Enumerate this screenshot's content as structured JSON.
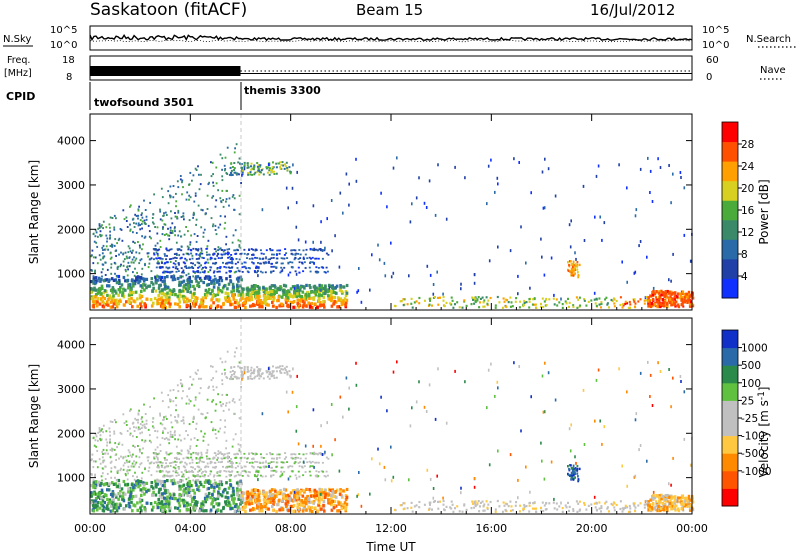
{
  "header": {
    "station": "Saskatoon (fitACF)",
    "beam": "Beam 15",
    "date": "16/Jul/2012"
  },
  "noise_panel": {
    "left_label": "N.Sky",
    "right_label": "N.Search",
    "left_ticks": [
      "10^5",
      "10^0"
    ],
    "right_ticks": [
      "10^5",
      "10^0"
    ]
  },
  "freq_panel": {
    "left_label_line1": "Freq.",
    "left_label_line2": "[MHz]",
    "right_label": "Nave",
    "left_ticks": [
      "18",
      "8"
    ],
    "right_ticks": [
      "60",
      "0"
    ]
  },
  "cpid_panel": {
    "label": "CPID",
    "segments": [
      {
        "name": "twofsound 3501",
        "start_hour": 0,
        "end_hour": 6
      },
      {
        "name": "themis 3300",
        "start_hour": 6,
        "end_hour": 24
      }
    ]
  },
  "colors": {
    "power_scale": [
      "#1030ff",
      "#2040a8",
      "#2a6aa8",
      "#3a8a6a",
      "#4aaa3a",
      "#d8d020",
      "#ffa000",
      "#ff5000",
      "#ff0000"
    ],
    "velocity_scale": [
      "#ff0000",
      "#ff5500",
      "#ff8a00",
      "#ffc840",
      "#c0c0c0",
      "#c0c0c0",
      "#60c040",
      "#2a8a4a",
      "#2a6aa8",
      "#1030c8"
    ]
  },
  "chart_data": [
    {
      "type": "heatmap",
      "panel": "power",
      "ylabel": "Slant Range [km]",
      "ytick_labels": [
        "1000",
        "2000",
        "3000",
        "4000"
      ],
      "yticks": [
        1000,
        2000,
        3000,
        4000
      ],
      "ylim": [
        180,
        4600
      ],
      "xlim": [
        0,
        24
      ],
      "colorbar_label": "Power [dB]",
      "colorbar_ticks": [
        "4",
        "8",
        "12",
        "16",
        "20",
        "24",
        "28"
      ],
      "colorbar_range": [
        0,
        30
      ]
    },
    {
      "type": "heatmap",
      "panel": "velocity",
      "ylabel": "Slant Range [km]",
      "ytick_labels": [
        "1000",
        "2000",
        "3000",
        "4000"
      ],
      "yticks": [
        1000,
        2000,
        3000,
        4000
      ],
      "ylim": [
        180,
        4600
      ],
      "xlim": [
        0,
        24
      ],
      "xlabel": "Time UT",
      "xtick_labels": [
        "00:00",
        "04:00",
        "08:00",
        "12:00",
        "16:00",
        "20:00",
        "00:00"
      ],
      "xticks": [
        0,
        4,
        8,
        12,
        16,
        20,
        24
      ],
      "colorbar_label": "Velocity [m s^-1]",
      "colorbar_ticks": [
        "1000",
        "500",
        "100",
        "25",
        "-25",
        "-100",
        "-500",
        "-1000"
      ]
    }
  ]
}
